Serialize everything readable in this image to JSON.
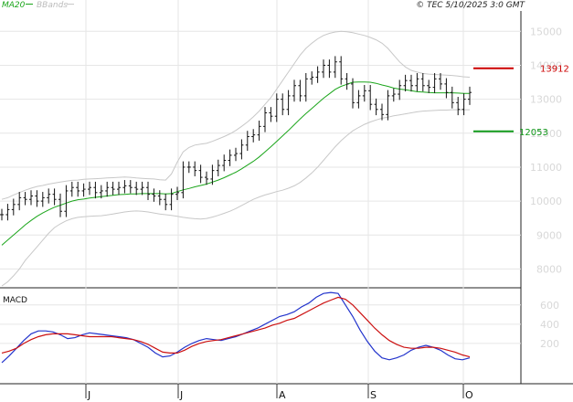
{
  "header": {
    "ma_label": "MA20",
    "bb_label": "BBands",
    "credit": "© TEC 5/10/2025 3:0 GMT"
  },
  "colors": {
    "ma": "#1aa51a",
    "bbands": "#c8c8c8",
    "bars": "#111111",
    "resistance": "#cc0000",
    "support": "#11991a",
    "macd": "#2233cc",
    "signal": "#cc1111",
    "grid": "#e6e6e6",
    "tick_text": "#d6d6d6"
  },
  "chart_data": [
    {
      "type": "ohlc",
      "title": "",
      "ylim": [
        7500,
        15600
      ],
      "y_ticks": [
        {
          "value": 15000,
          "label": "15000"
        },
        {
          "value": 14000,
          "label": "14000"
        },
        {
          "value": 13000,
          "label": "13000"
        },
        {
          "value": 12000,
          "label": "12000"
        },
        {
          "value": 11000,
          "label": "11000"
        },
        {
          "value": 10000,
          "label": "10000"
        },
        {
          "value": 9000,
          "label": "9000"
        },
        {
          "value": 8000,
          "label": "8000"
        }
      ],
      "x_ticks": [
        "J",
        "J",
        "A",
        "S",
        "O"
      ],
      "close": [
        9600,
        9750,
        9900,
        10100,
        10050,
        10150,
        10000,
        10100,
        10200,
        10050,
        9700,
        10300,
        10400,
        10300,
        10350,
        10400,
        10250,
        10300,
        10400,
        10350,
        10400,
        10450,
        10400,
        10350,
        10400,
        10200,
        10150,
        10050,
        9900,
        10200,
        10250,
        11000,
        11000,
        10900,
        10700,
        10650,
        10900,
        11050,
        11200,
        11350,
        11400,
        11650,
        11900,
        11950,
        12200,
        12600,
        12500,
        13000,
        12700,
        13100,
        13400,
        13100,
        13600,
        13650,
        13800,
        14000,
        13800,
        14100,
        13600,
        13450,
        12900,
        13100,
        13250,
        12850,
        12700,
        12550,
        13100,
        13150,
        13400,
        13550,
        13400,
        13600,
        13400,
        13350,
        13600,
        13450,
        13200,
        12900,
        12700,
        13000,
        13200
      ],
      "ma20": [
        8700,
        8850,
        9000,
        9150,
        9300,
        9430,
        9550,
        9650,
        9740,
        9820,
        9880,
        9940,
        10000,
        10040,
        10060,
        10090,
        10110,
        10130,
        10150,
        10170,
        10190,
        10200,
        10210,
        10210,
        10220,
        10220,
        10220,
        10220,
        10210,
        10220,
        10280,
        10330,
        10370,
        10420,
        10460,
        10500,
        10560,
        10620,
        10690,
        10770,
        10850,
        10950,
        11060,
        11170,
        11300,
        11450,
        11600,
        11760,
        11920,
        12080,
        12250,
        12420,
        12580,
        12730,
        12880,
        13030,
        13160,
        13290,
        13380,
        13440,
        13500,
        13510,
        13510,
        13500,
        13470,
        13420,
        13380,
        13330,
        13300,
        13280,
        13250,
        13220,
        13210,
        13200,
        13190,
        13190,
        13190,
        13190,
        13180,
        13170,
        13170
      ],
      "bb_upper": [
        10050,
        10100,
        10180,
        10250,
        10320,
        10380,
        10430,
        10460,
        10500,
        10530,
        10560,
        10590,
        10610,
        10620,
        10640,
        10650,
        10660,
        10670,
        10680,
        10690,
        10700,
        10710,
        10700,
        10680,
        10670,
        10660,
        10650,
        10630,
        10620,
        10800,
        11150,
        11450,
        11580,
        11650,
        11680,
        11700,
        11760,
        11830,
        11900,
        11980,
        12080,
        12200,
        12330,
        12480,
        12650,
        12850,
        13050,
        13300,
        13550,
        13800,
        14050,
        14300,
        14500,
        14650,
        14780,
        14880,
        14940,
        14980,
        15000,
        14990,
        14960,
        14920,
        14880,
        14820,
        14750,
        14650,
        14500,
        14300,
        14100,
        13950,
        13850,
        13800,
        13760,
        13740,
        13730,
        13720,
        13710,
        13700,
        13680,
        13660,
        13650
      ],
      "bb_lower": [
        7500,
        7620,
        7800,
        8000,
        8250,
        8450,
        8650,
        8850,
        9050,
        9220,
        9330,
        9420,
        9480,
        9520,
        9540,
        9550,
        9560,
        9570,
        9590,
        9620,
        9650,
        9680,
        9700,
        9710,
        9700,
        9680,
        9650,
        9620,
        9600,
        9580,
        9550,
        9520,
        9500,
        9480,
        9470,
        9490,
        9530,
        9580,
        9640,
        9700,
        9780,
        9870,
        9960,
        10050,
        10120,
        10180,
        10230,
        10280,
        10320,
        10380,
        10450,
        10550,
        10680,
        10830,
        11000,
        11200,
        11400,
        11600,
        11780,
        11930,
        12070,
        12170,
        12260,
        12330,
        12390,
        12440,
        12470,
        12510,
        12540,
        12570,
        12600,
        12630,
        12650,
        12660,
        12670,
        12680,
        12680,
        12690,
        12690,
        12690,
        12690
      ],
      "resistance": {
        "value": 13912,
        "label": "13912"
      },
      "support": {
        "value": 12053,
        "label": "12053"
      }
    },
    {
      "type": "line",
      "title": "MACD",
      "ylim": [
        -200,
        750
      ],
      "y_ticks": [
        {
          "value": 600,
          "label": "600"
        },
        {
          "value": 400,
          "label": "400"
        },
        {
          "value": 200,
          "label": "200"
        }
      ],
      "series": [
        {
          "key": "macd",
          "values": [
            0,
            70,
            150,
            230,
            300,
            330,
            330,
            320,
            290,
            250,
            260,
            290,
            310,
            300,
            290,
            280,
            270,
            260,
            240,
            200,
            160,
            100,
            60,
            70,
            110,
            160,
            200,
            230,
            250,
            240,
            230,
            250,
            270,
            300,
            330,
            360,
            400,
            440,
            480,
            500,
            530,
            580,
            620,
            680,
            720,
            730,
            720,
            600,
            480,
            340,
            220,
            120,
            50,
            30,
            50,
            80,
            130,
            160,
            180,
            160,
            130,
            80,
            40,
            30,
            50
          ]
        },
        {
          "key": "signal",
          "values": [
            100,
            120,
            150,
            200,
            240,
            270,
            290,
            300,
            300,
            300,
            290,
            280,
            270,
            270,
            270,
            270,
            260,
            250,
            240,
            220,
            190,
            150,
            110,
            100,
            100,
            130,
            170,
            200,
            220,
            230,
            240,
            260,
            280,
            300,
            320,
            340,
            360,
            390,
            410,
            440,
            460,
            500,
            540,
            580,
            620,
            650,
            680,
            660,
            600,
            520,
            440,
            360,
            290,
            230,
            190,
            160,
            150,
            150,
            160,
            160,
            150,
            130,
            110,
            80,
            60
          ]
        }
      ]
    }
  ]
}
